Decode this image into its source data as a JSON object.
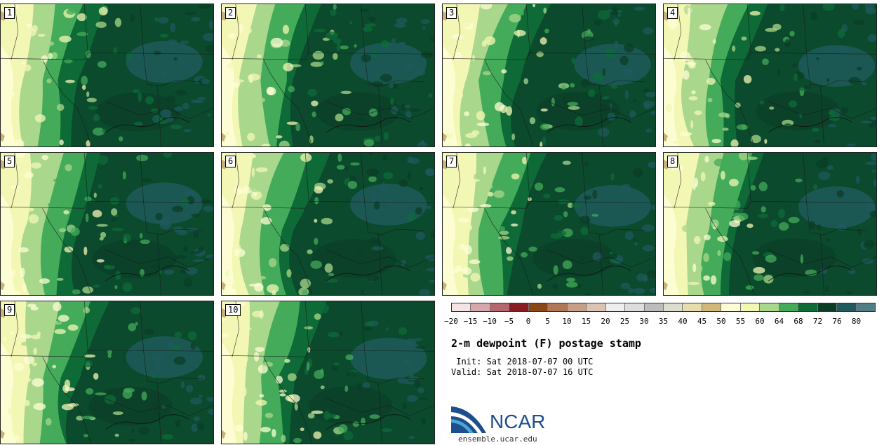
{
  "panels": [
    {
      "label": "1"
    },
    {
      "label": "2"
    },
    {
      "label": "3"
    },
    {
      "label": "4"
    },
    {
      "label": "5"
    },
    {
      "label": "6"
    },
    {
      "label": "7"
    },
    {
      "label": "8"
    },
    {
      "label": "9"
    },
    {
      "label": "10"
    }
  ],
  "colorbar": {
    "colors": [
      "#f4e4e6",
      "#d6a7ac",
      "#b4676e",
      "#8a1d24",
      "#8a4818",
      "#b07856",
      "#c79f86",
      "#dcc4b4",
      "#eeeeee",
      "#dddddd",
      "#bcbcbc",
      "#dcdccf",
      "#e7dcae",
      "#d0b878",
      "#fdfdd4",
      "#f3f7b4",
      "#a9d78b",
      "#44ab5a",
      "#0e6b37",
      "#0b3d26",
      "#1f5a5c",
      "#4f7f85"
    ],
    "ticks": [
      "−20",
      "−15",
      "−10",
      "−5",
      "0",
      "5",
      "10",
      "15",
      "20",
      "25",
      "30",
      "35",
      "40",
      "45",
      "50",
      "55",
      "60",
      "64",
      "68",
      "72",
      "76",
      "80"
    ]
  },
  "title": "2-m dewpoint (F) postage stamp",
  "init_line": " Init: Sat 2018-07-07 00 UTC",
  "valid_line": "Valid: Sat 2018-07-07 16 UTC",
  "logo_text": "NCAR",
  "site": "ensemble.ucar.edu"
}
